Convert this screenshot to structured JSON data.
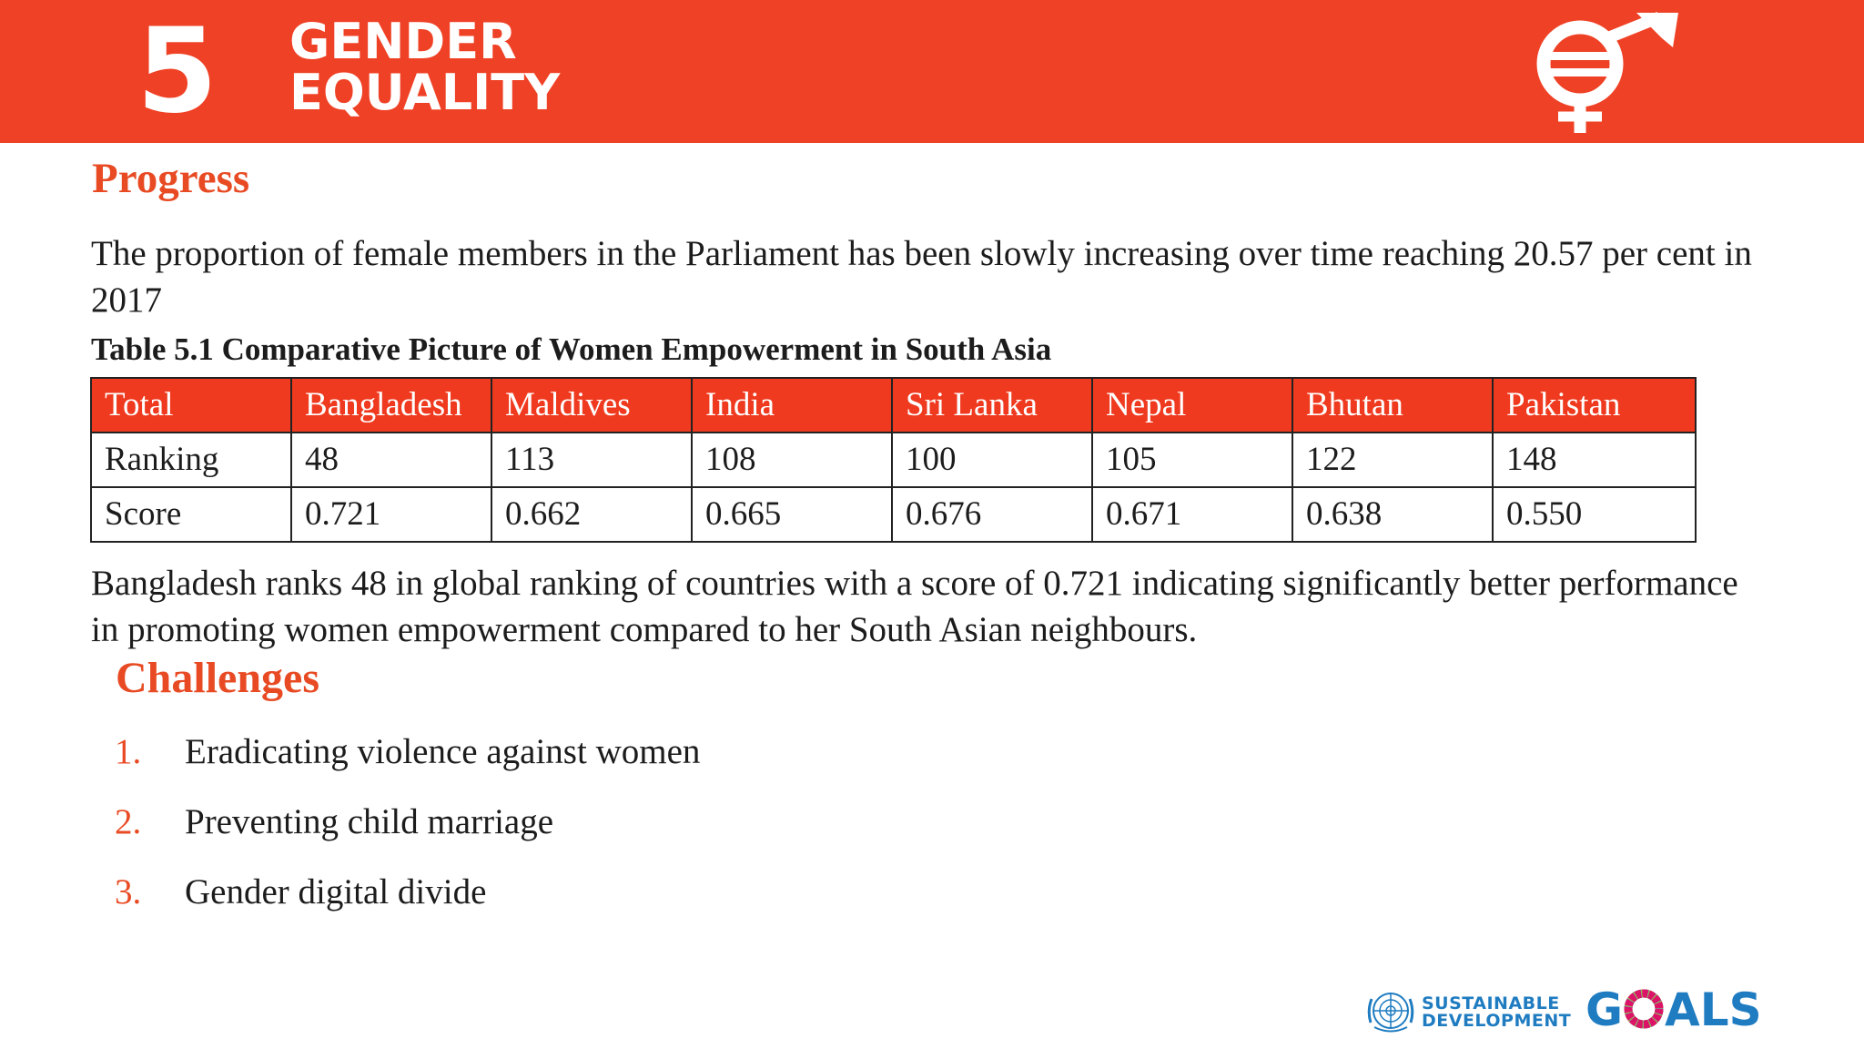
{
  "banner": {
    "goal_number": "5",
    "goal_title_line1": "GENDER",
    "goal_title_line2": "EQUALITY",
    "background_color": "#ef4125",
    "icon": "gender-equality-symbol-icon"
  },
  "progress": {
    "heading": "Progress",
    "text": "The proportion of female members in the Parliament has been slowly increasing over time reaching 20.57 per cent in 2017"
  },
  "table": {
    "caption": "Table 5.1 Comparative Picture of Women Empowerment in South Asia",
    "header": [
      "Total",
      "Bangladesh",
      "Maldives",
      "India",
      "Sri Lanka",
      "Nepal",
      "Bhutan",
      "Pakistan"
    ],
    "rows": [
      [
        "Ranking",
        "48",
        "113",
        "108",
        "100",
        "105",
        "122",
        "148"
      ],
      [
        "Score",
        "0.721",
        "0.662",
        "0.665",
        "0.676",
        "0.671",
        "0.638",
        "0.550"
      ]
    ],
    "header_color": "#ef3a1f"
  },
  "summary": {
    "text": "Bangladesh ranks 48 in global ranking of countries with a score of 0.721 indicating significantly better performance in promoting women empowerment compared to her South Asian neighbours."
  },
  "challenges": {
    "heading": "Challenges",
    "items": [
      {
        "num": "1.",
        "text": "Eradicating violence against women"
      },
      {
        "num": "2.",
        "text": "Preventing child marriage"
      },
      {
        "num": "3.",
        "text": "Gender digital divide"
      }
    ]
  },
  "footer": {
    "logo_line1": "SUSTAINABLE",
    "logo_line2": "DEVELOPMENT",
    "logo_goals_g": "G",
    "logo_goals_rest": "ALS",
    "logo_color": "#1f7cc1"
  },
  "colors": {
    "accent": "#e84b24",
    "text": "#1c1c1c"
  }
}
